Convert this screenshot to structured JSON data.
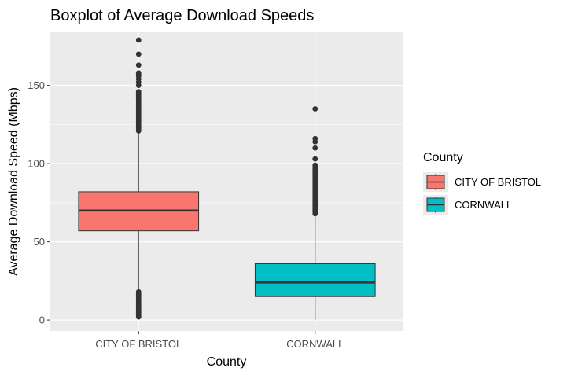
{
  "chart_data": {
    "type": "boxplot",
    "title": "Boxplot of Average Download Speeds",
    "xlabel": "County",
    "ylabel": "Average Download Speed (Mbps)",
    "ylim": [
      -7,
      184
    ],
    "yticks": [
      0,
      50,
      100,
      150
    ],
    "categories": [
      "CITY OF BRISTOL",
      "CORNWALL"
    ],
    "legend": {
      "title": "County",
      "position": "right"
    },
    "grid": true,
    "series": [
      {
        "name": "CITY OF BRISTOL",
        "color": "#F8766D",
        "whisker_low": 2,
        "q1": 57,
        "median": 70,
        "q3": 82,
        "whisker_high": 120,
        "outliers_low": [
          2,
          3,
          4,
          5,
          6,
          7,
          8,
          9,
          10,
          11,
          12,
          13,
          14,
          15,
          16,
          17,
          18
        ],
        "outliers_high": [
          121,
          122,
          123,
          124,
          125,
          126,
          127,
          128,
          129,
          130,
          131,
          132,
          133,
          134,
          135,
          136,
          137,
          138,
          139,
          140,
          141,
          142,
          143,
          144,
          145,
          146,
          150,
          152,
          154,
          156,
          157,
          158,
          163,
          170,
          179
        ]
      },
      {
        "name": "CORNWALL",
        "color": "#00BFC4",
        "whisker_low": 0,
        "q1": 15,
        "median": 24,
        "q3": 36,
        "whisker_high": 67,
        "outliers_low": [],
        "outliers_high": [
          68,
          69,
          70,
          71,
          72,
          73,
          74,
          75,
          76,
          77,
          78,
          79,
          80,
          81,
          82,
          83,
          84,
          85,
          86,
          87,
          88,
          89,
          90,
          91,
          92,
          93,
          94,
          95,
          96,
          97,
          98,
          99,
          103,
          110,
          114,
          116,
          135
        ]
      }
    ]
  }
}
